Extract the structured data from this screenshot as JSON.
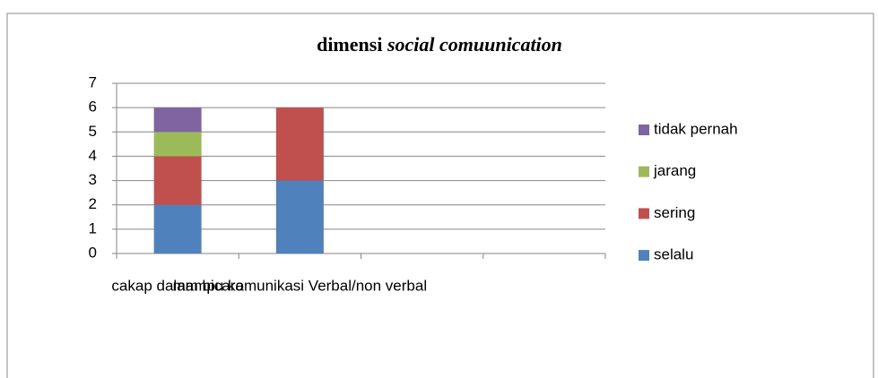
{
  "chart_data": {
    "type": "stacked_bar",
    "title": [
      "dimensi",
      "social comuunication"
    ],
    "categories": [
      "cakap dalam bicara",
      "mampu komunikasi Verbal/non verbal",
      null,
      null
    ],
    "series": [
      {
        "name": "selalu",
        "color": "#4f81bd",
        "values": [
          2,
          3,
          null,
          null
        ]
      },
      {
        "name": "sering",
        "color": "#c0504d",
        "values": [
          2,
          3,
          null,
          null
        ]
      },
      {
        "name": "jarang",
        "color": "#9bbb59",
        "values": [
          1,
          null,
          null,
          null
        ]
      },
      {
        "name": "tidak pernah",
        "color": "#8064a2",
        "values": [
          1,
          null,
          null,
          null
        ]
      }
    ],
    "ylim": [
      0,
      7
    ],
    "yticks": [
      0,
      1,
      2,
      3,
      4,
      5,
      6,
      7
    ],
    "grid": true,
    "legend": "right"
  }
}
